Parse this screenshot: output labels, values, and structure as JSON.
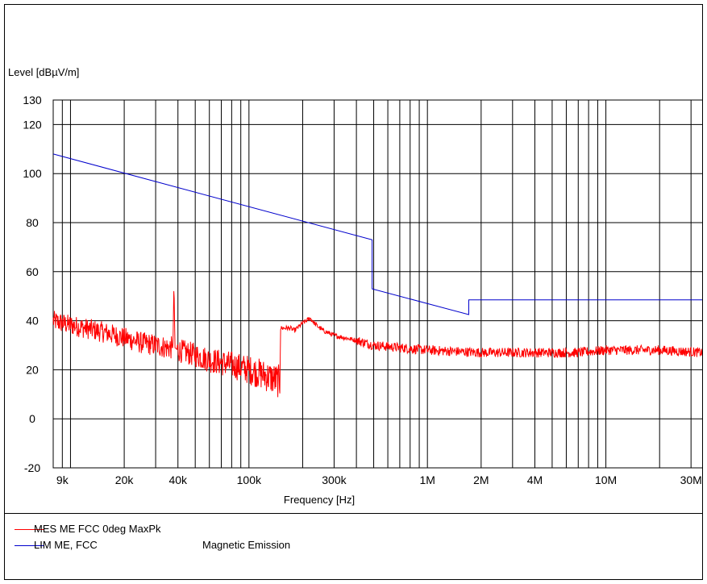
{
  "chart_data": {
    "type": "line",
    "ylabel": "Level [dBµV/m]",
    "xlabel": "Frequency [Hz]",
    "x_scale": "log",
    "xlim": [
      8000,
      35000000
    ],
    "ylim": [
      -20,
      130
    ],
    "grid": true,
    "y_ticks": [
      {
        "value": -20,
        "label": "-20"
      },
      {
        "value": 0,
        "label": "0"
      },
      {
        "value": 20,
        "label": "20"
      },
      {
        "value": 40,
        "label": "40"
      },
      {
        "value": 60,
        "label": "60"
      },
      {
        "value": 80,
        "label": "80"
      },
      {
        "value": 100,
        "label": "100"
      },
      {
        "value": 120,
        "label": "120"
      },
      {
        "value": 130,
        "label": "130"
      }
    ],
    "x_ticks": [
      {
        "value": 9000,
        "label": "9k"
      },
      {
        "value": 20000,
        "label": "20k"
      },
      {
        "value": 40000,
        "label": "40k"
      },
      {
        "value": 100000,
        "label": "100k"
      },
      {
        "value": 300000,
        "label": "300k"
      },
      {
        "value": 1000000,
        "label": "1M"
      },
      {
        "value": 2000000,
        "label": "2M"
      },
      {
        "value": 4000000,
        "label": "4M"
      },
      {
        "value": 10000000,
        "label": "10M"
      },
      {
        "value": 30000000,
        "label": "30M"
      }
    ],
    "series": [
      {
        "name": "MES  ME FCC 0deg MaxPk",
        "color": "#ff0000",
        "x": [
          8000,
          9000,
          12000,
          16000,
          20000,
          25000,
          30000,
          35000,
          37500,
          38000,
          38500,
          40000,
          50000,
          60000,
          80000,
          100000,
          120000,
          140000,
          149000,
          150000,
          170000,
          180000,
          200000,
          220000,
          240000,
          260000,
          300000,
          400000,
          500000,
          700000,
          1000000,
          2000000,
          4000000,
          7000000,
          10000000,
          20000000,
          35000000
        ],
        "y": [
          40,
          39,
          37,
          35,
          33,
          31,
          30,
          29,
          29,
          56,
          29,
          28,
          26,
          24,
          22,
          20,
          18,
          16,
          15,
          37,
          37,
          36,
          39,
          41,
          38,
          36,
          34,
          32,
          30,
          29,
          28,
          27,
          27,
          27,
          28,
          28,
          27
        ]
      },
      {
        "name": "LIM  ME, FCC",
        "color": "#0000cc",
        "x": [
          8000,
          490000,
          490000,
          1705000,
          1705000,
          35000000
        ],
        "y": [
          108,
          73,
          53,
          42.5,
          48.5,
          48.5
        ]
      }
    ]
  },
  "legend": [
    {
      "label": "MES  ME FCC 0deg MaxPk",
      "color": "#ff0000",
      "desc": ""
    },
    {
      "label": "LIM  ME, FCC",
      "color": "#0000cc",
      "desc": "Magnetic Emission"
    }
  ]
}
